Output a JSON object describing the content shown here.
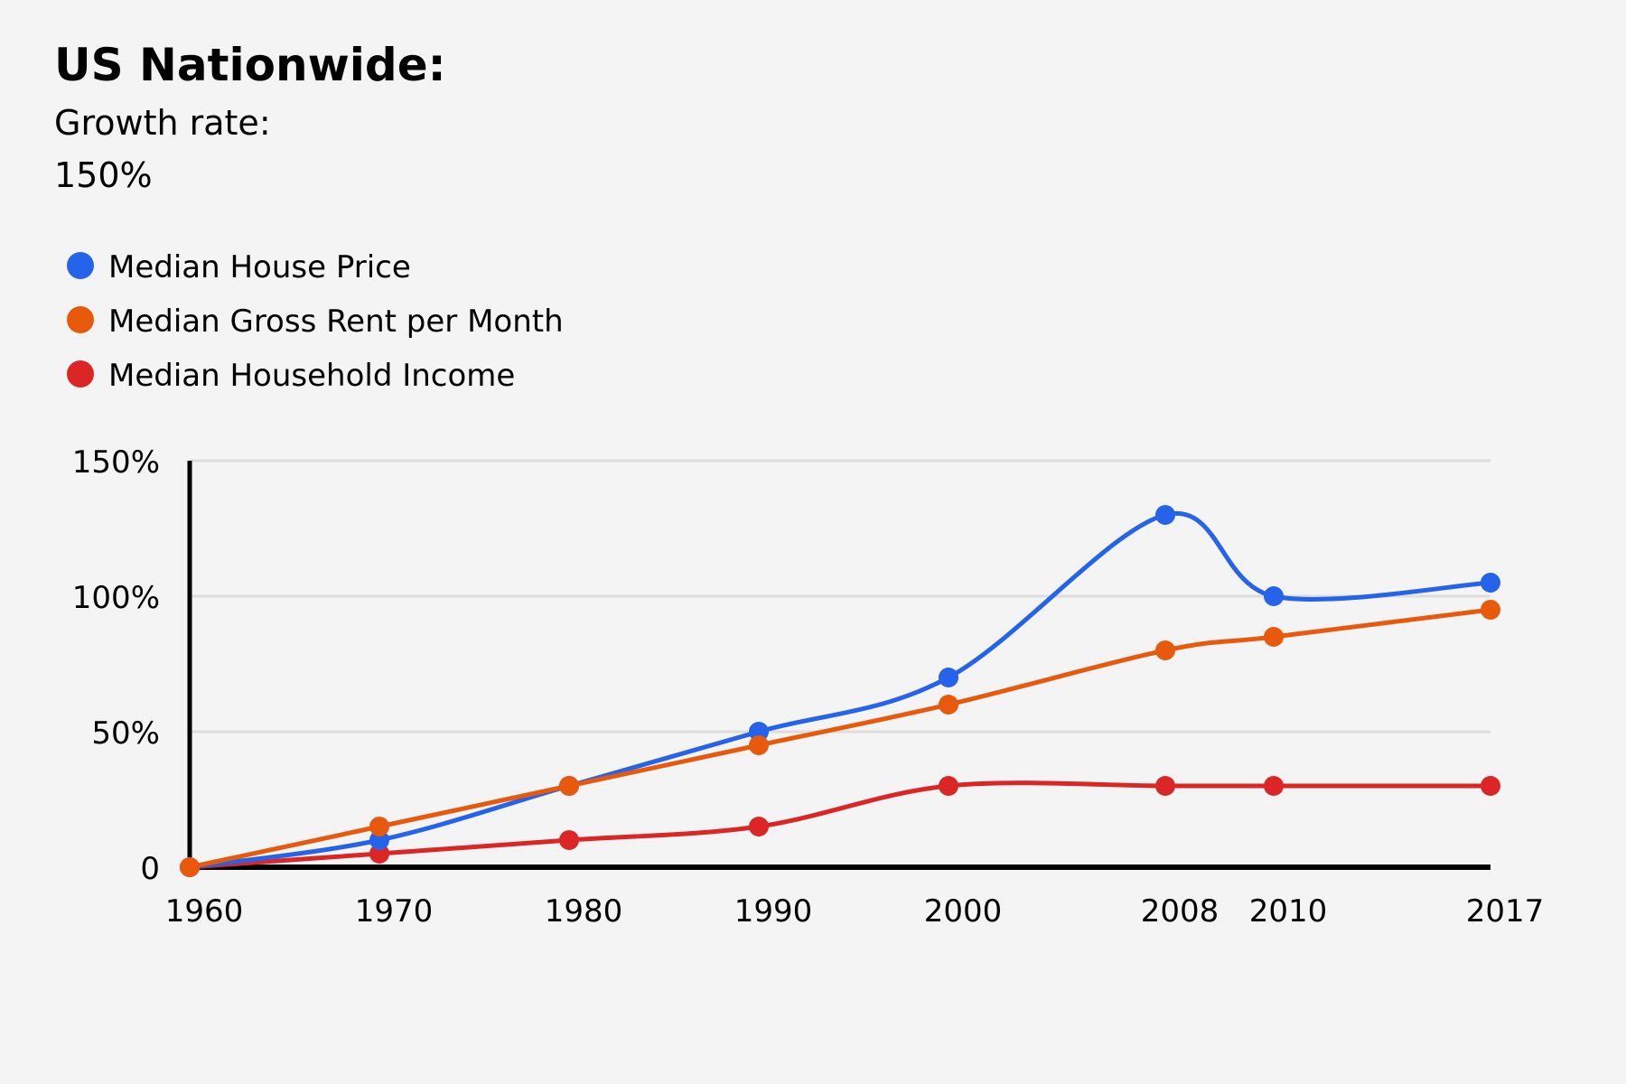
{
  "header": {
    "title": "US Nationwide:",
    "subtitle": "Growth rate:",
    "value": "150%"
  },
  "colors": {
    "house": "#2563eb",
    "rent": "#e8590c",
    "income": "#dc2626",
    "grid": "#dddddd",
    "axis": "#000000"
  },
  "chart_data": {
    "type": "line",
    "title": "US Nationwide:",
    "subtitle": "Growth rate:",
    "x": [
      "1960",
      "1970",
      "1980",
      "1990",
      "2000",
      "2008",
      "2010",
      "2017"
    ],
    "xlabel": "",
    "ylabel": "",
    "ylim": [
      0,
      150
    ],
    "y_ticks": [
      {
        "value": 0,
        "label": "0"
      },
      {
        "value": 50,
        "label": "50%"
      },
      {
        "value": 100,
        "label": "100%"
      },
      {
        "value": 150,
        "label": "150%"
      }
    ],
    "grid": true,
    "legend_position": "top-left",
    "series": [
      {
        "name": "Median House Price",
        "key": "house",
        "values": [
          0,
          10,
          30,
          50,
          70,
          130,
          100,
          105
        ]
      },
      {
        "name": "Median Gross Rent per Month",
        "key": "rent",
        "values": [
          0,
          15,
          30,
          45,
          60,
          80,
          85,
          95
        ]
      },
      {
        "name": "Median Household Income",
        "key": "income",
        "values": [
          0,
          5,
          10,
          15,
          30,
          30,
          30,
          30
        ]
      }
    ]
  }
}
